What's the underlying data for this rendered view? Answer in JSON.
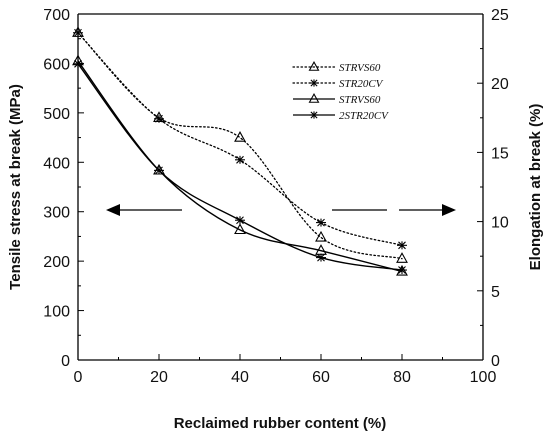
{
  "chart_data": {
    "type": "line",
    "xlabel": "Reclaimed rubber content (%)",
    "ylabel_left": "Tensile stress at break (MPa)",
    "ylabel_right": "Elongation at break (%)",
    "xlim": [
      0,
      100
    ],
    "ylim_left": [
      0,
      700
    ],
    "ylim_right": [
      0,
      25
    ],
    "x_ticks": [
      0,
      20,
      40,
      60,
      80,
      100
    ],
    "y_ticks_left": [
      0,
      100,
      200,
      300,
      400,
      500,
      600,
      700
    ],
    "y_ticks_right": [
      0,
      5,
      10,
      15,
      20,
      25
    ],
    "legend_position": "top-right",
    "series": [
      {
        "name": "STRVS60",
        "axis": "left",
        "marker": "triangle",
        "line": "dotted",
        "x": [
          0,
          20,
          40,
          60,
          80
        ],
        "values": [
          662,
          490,
          450,
          248,
          205
        ]
      },
      {
        "name": "STR20CV",
        "axis": "left",
        "marker": "star",
        "line": "dotted",
        "x": [
          0,
          20,
          40,
          60,
          80
        ],
        "values": [
          662,
          488,
          405,
          278,
          232
        ]
      },
      {
        "name": "STRVS60",
        "axis": "right",
        "marker": "triangle",
        "line": "solid",
        "x": [
          0,
          20,
          40,
          60,
          80
        ],
        "values": [
          21.6,
          13.7,
          9.4,
          7.9,
          6.4
        ]
      },
      {
        "name": "2STR20CV",
        "axis": "right",
        "marker": "star",
        "line": "solid",
        "x": [
          0,
          20,
          40,
          60,
          80
        ],
        "values": [
          21.4,
          13.7,
          10.1,
          7.4,
          6.5
        ]
      }
    ],
    "annotations": [
      {
        "type": "arrow",
        "direction": "left",
        "meaning": "series refer to left axis"
      },
      {
        "type": "arrow",
        "direction": "right",
        "meaning": "series refer to right axis"
      }
    ]
  }
}
